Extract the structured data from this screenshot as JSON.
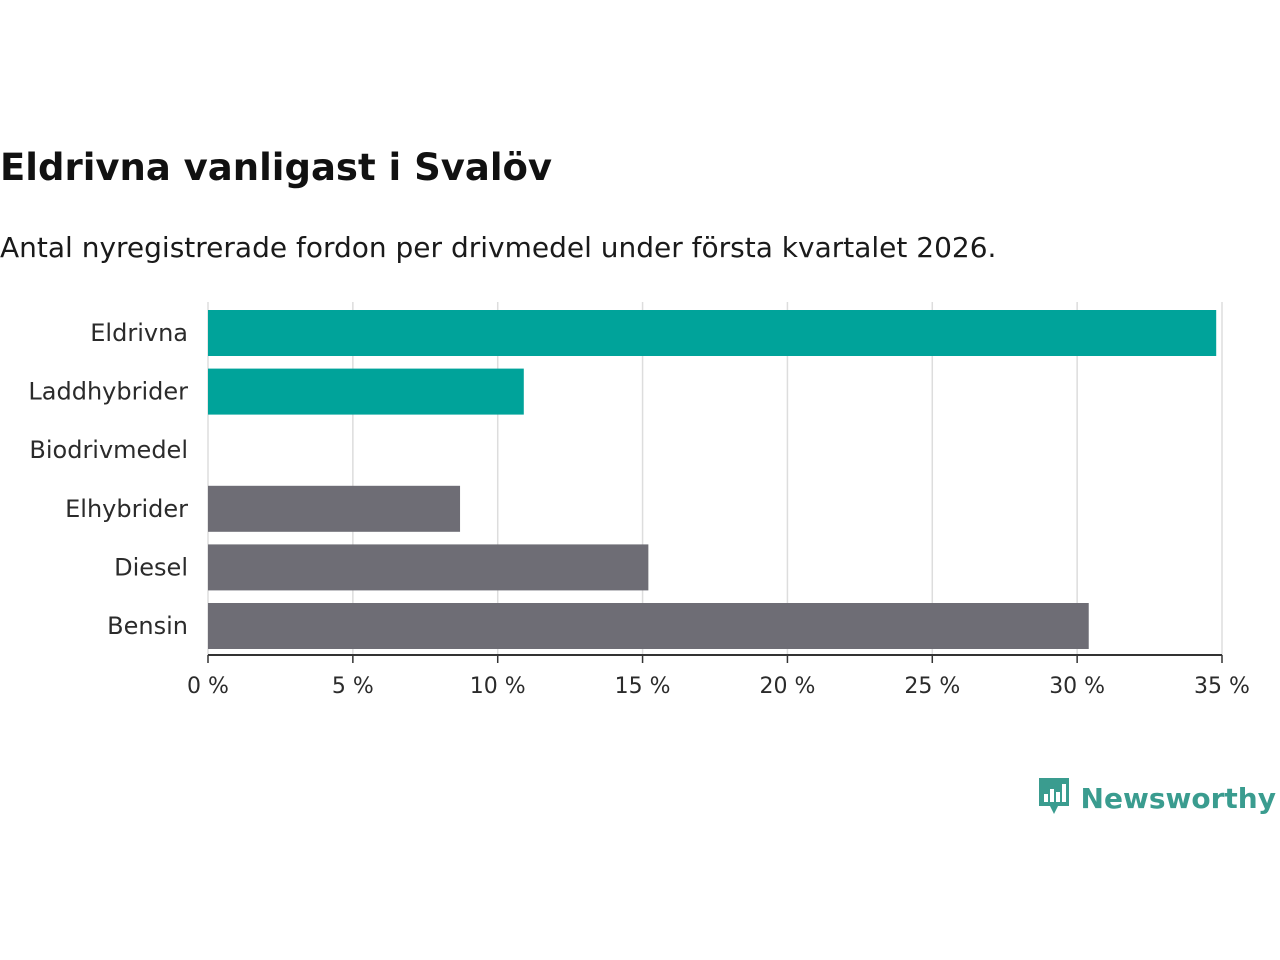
{
  "header": {
    "title": "Eldrivna vanligast i Svalöv",
    "subtitle": "Antal nyregistrerade fordon per drivmedel under första kvartalet 2026."
  },
  "colors": {
    "highlight": "#00a39a",
    "neutral": "#6e6d75",
    "grid": "#dddddd",
    "axis": "#333333",
    "logo": "#3a9c8f"
  },
  "chart_data": {
    "type": "bar",
    "orientation": "horizontal",
    "title": "Eldrivna vanligast i Svalöv",
    "subtitle": "Antal nyregistrerade fordon per drivmedel under första kvartalet 2026.",
    "xlabel": "",
    "ylabel": "",
    "xlim": [
      0,
      35
    ],
    "grid": true,
    "categories": [
      "Eldrivna",
      "Laddhybrider",
      "Biodrivmedel",
      "Elhybrider",
      "Diesel",
      "Bensin"
    ],
    "values": [
      34.8,
      10.9,
      0,
      8.7,
      15.2,
      30.4
    ],
    "highlight": [
      true,
      true,
      true,
      false,
      false,
      false
    ],
    "ticks": [
      0,
      5,
      10,
      15,
      20,
      25,
      30,
      35
    ],
    "tick_labels": [
      "0 %",
      "5 %",
      "10 %",
      "15 %",
      "20 %",
      "25 %",
      "30 %",
      "35 %"
    ]
  },
  "branding": {
    "logo_text": "Newsworthy",
    "logo_icon": "newsworthy-chart-bubble-icon"
  }
}
